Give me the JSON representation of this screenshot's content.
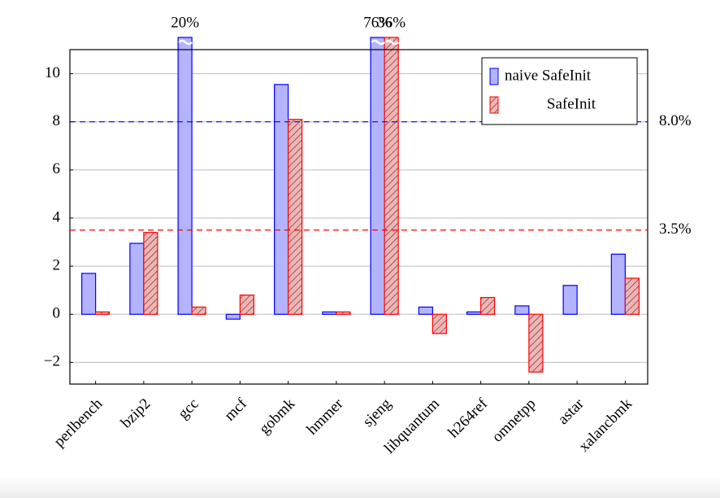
{
  "chart_data": {
    "type": "bar",
    "categories": [
      "perlbench",
      "bzip2",
      "gcc",
      "mcf",
      "gobmk",
      "hmmer",
      "sjeng",
      "libquantum",
      "h264ref",
      "omnetpp",
      "astar",
      "xalancbmk"
    ],
    "series": [
      {
        "name": "naive SafeInit",
        "color": "#0000ff",
        "fill": "#b3b3ff",
        "hatched": false,
        "values": [
          1.7,
          2.95,
          20,
          -0.2,
          9.55,
          0.1,
          76,
          0.3,
          0.1,
          0.35,
          1.2,
          2.5
        ],
        "value_labels": [
          null,
          null,
          "20%",
          null,
          null,
          null,
          "76%",
          null,
          null,
          null,
          null,
          null
        ]
      },
      {
        "name": "SafeInit",
        "color": "#ff0000",
        "fill": "#f4b3b3",
        "hatched": true,
        "values": [
          0.1,
          3.4,
          0.3,
          0.8,
          8.1,
          0.1,
          36,
          -0.8,
          0.7,
          -2.4,
          0.0,
          1.5
        ],
        "value_labels": [
          null,
          null,
          null,
          null,
          null,
          null,
          "36%",
          null,
          null,
          null,
          null,
          null
        ]
      }
    ],
    "ylim": [
      -2.9,
      11
    ],
    "yticks": [
      {
        "value": -2,
        "label": "−2"
      },
      0,
      2,
      4,
      6,
      8,
      10
    ],
    "grid": true,
    "reference_lines": [
      {
        "value": 8.0,
        "label": "8.0%",
        "color": "#0000ff"
      },
      {
        "value": 3.5,
        "label": "3.5%",
        "color": "#ff0000"
      }
    ],
    "legend": "top-right"
  }
}
